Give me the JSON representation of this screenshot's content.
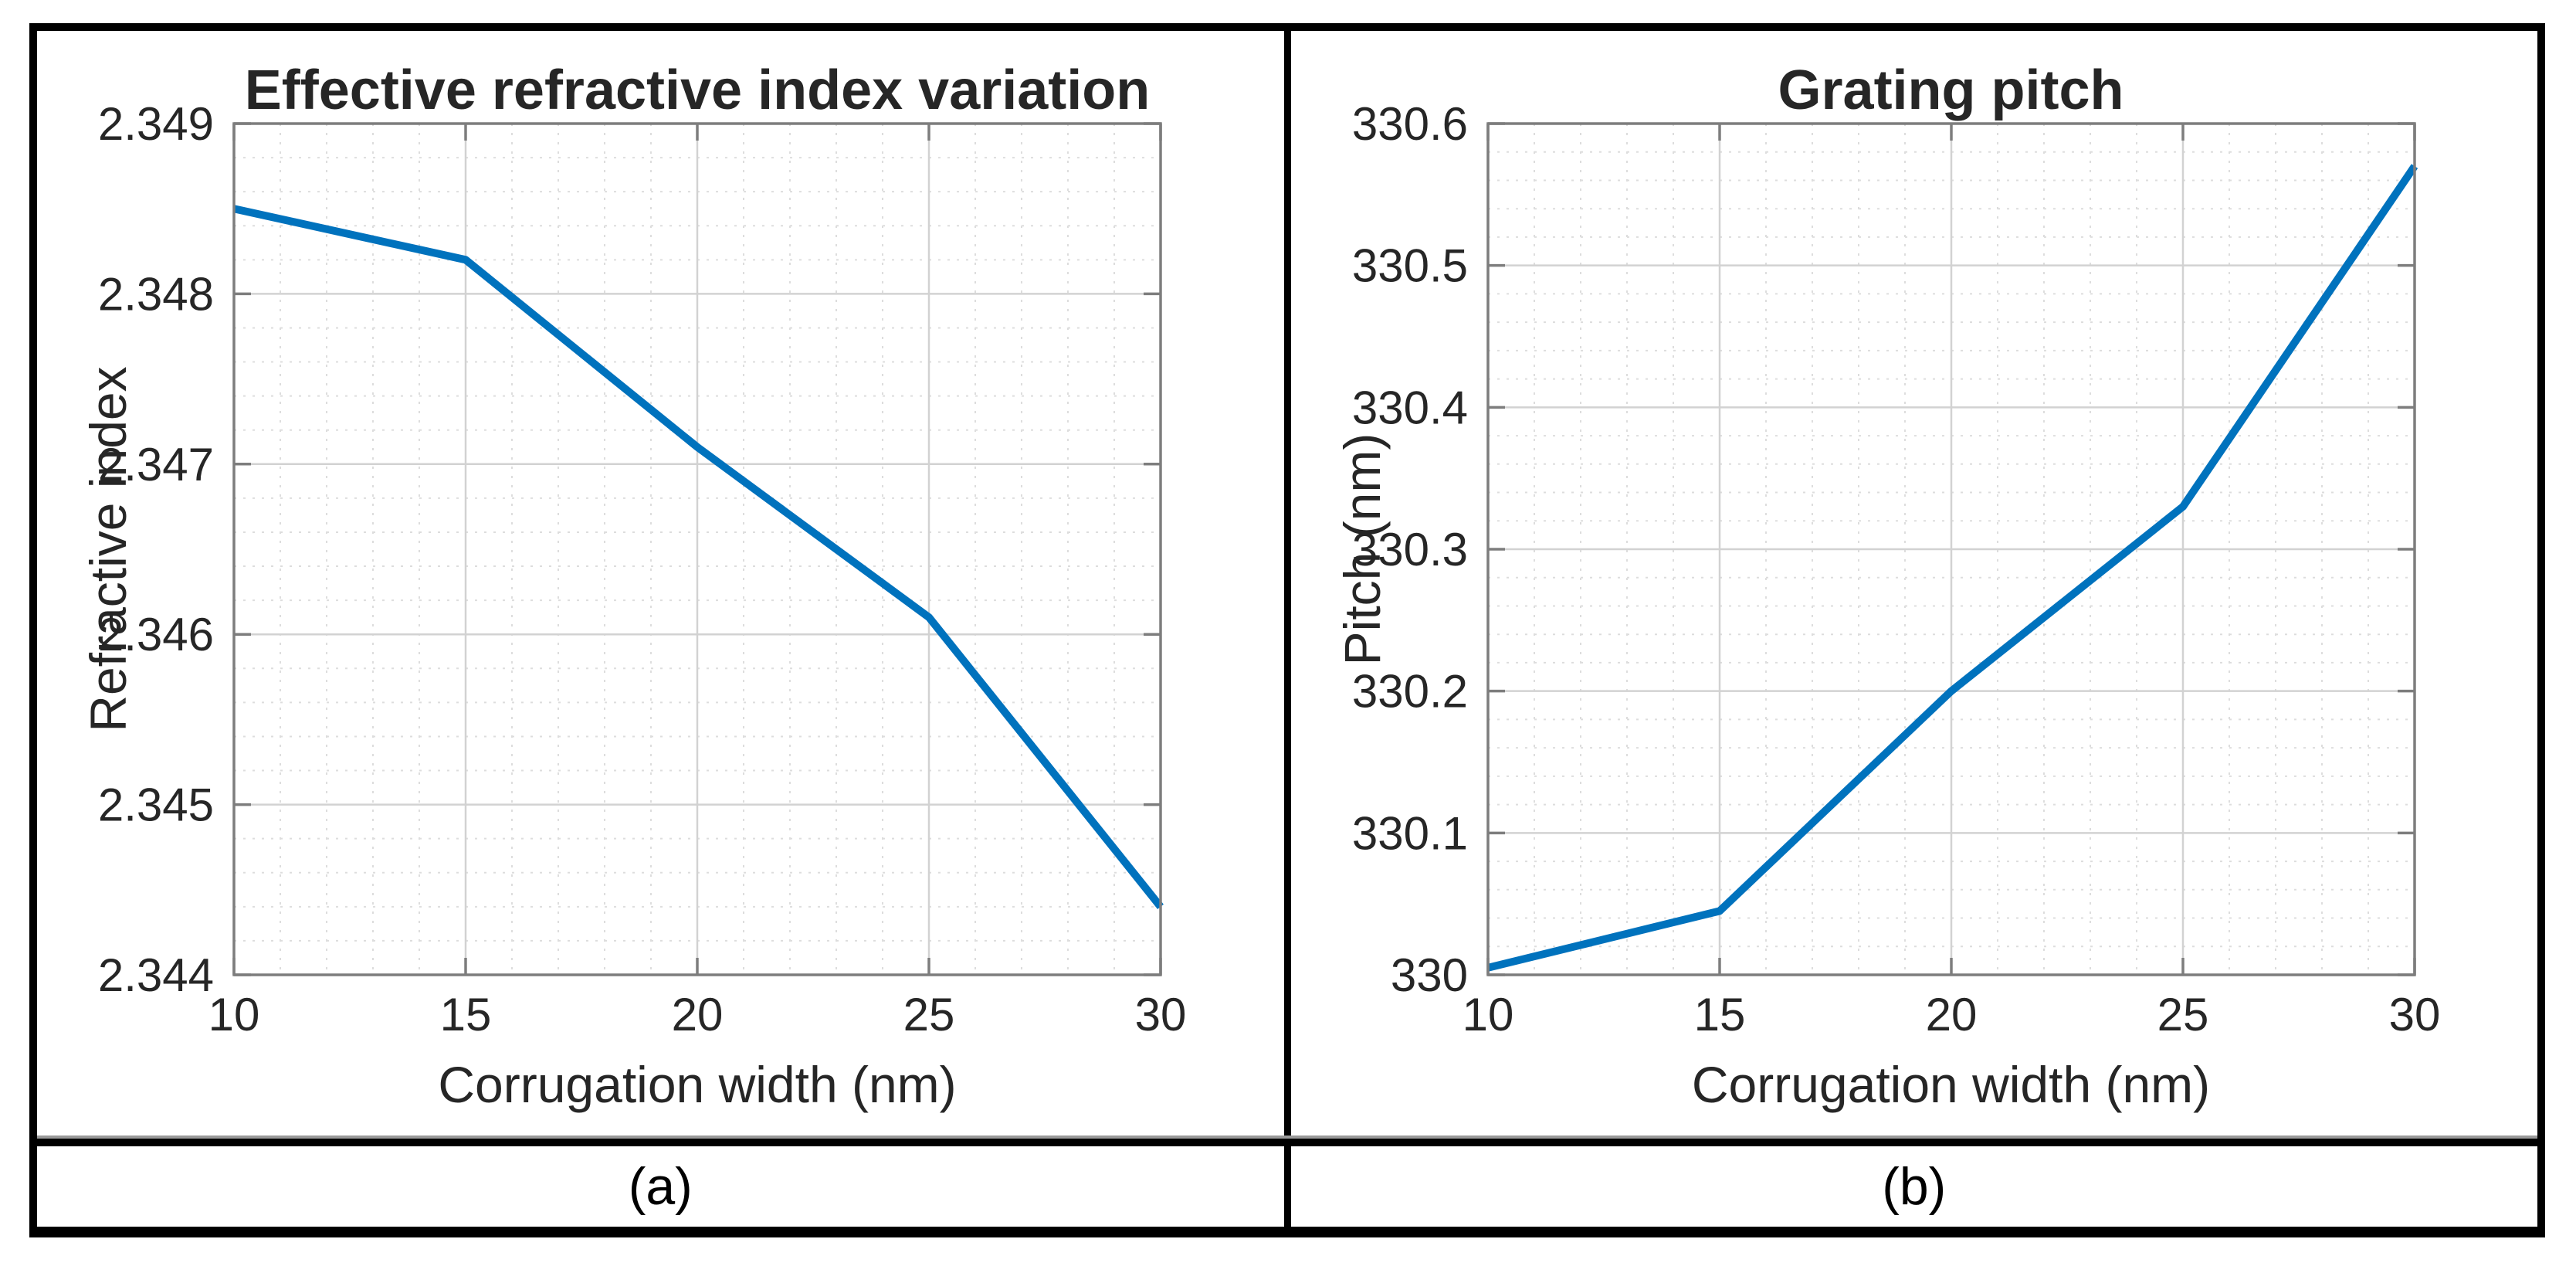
{
  "figure": {
    "background": "#ffffff",
    "border_color": "#000000",
    "axis_box_color": "#7d7d7d",
    "major_grid_color": "#d2d2d2",
    "minor_grid_color": "#dddddd",
    "text_color": "#262626",
    "accent_line_color": "#0072BD",
    "captions": {
      "left": "(a)",
      "right": "(b)"
    }
  },
  "chart_data": [
    {
      "type": "line",
      "title": "Effective refractive index variation",
      "xlabel": "Corrugation width (nm)",
      "ylabel": "Refractive index",
      "x": [
        10,
        15,
        20,
        25,
        30
      ],
      "y": [
        2.3485,
        2.3482,
        2.3471,
        2.3461,
        2.3444
      ],
      "xlim": [
        10,
        30
      ],
      "ylim": [
        2.344,
        2.349
      ],
      "xticks": [
        10,
        15,
        20,
        25,
        30
      ],
      "xtick_labels": [
        "10",
        "15",
        "20",
        "25",
        "30"
      ],
      "yticks": [
        2.344,
        2.345,
        2.346,
        2.347,
        2.348,
        2.349
      ],
      "ytick_labels": [
        "2.344",
        "2.345",
        "2.346",
        "2.347",
        "2.348",
        "2.349"
      ],
      "minor_x_step": 1,
      "minor_y_step": 0.0002,
      "grid": true,
      "minor_grid": true,
      "legend": "none",
      "line_color": "#0072BD",
      "caption": "(a)"
    },
    {
      "type": "line",
      "title": "Grating pitch",
      "xlabel": "Corrugation width (nm)",
      "ylabel": "Pitch (nm)",
      "x": [
        10,
        15,
        20,
        25,
        30
      ],
      "y": [
        330.005,
        330.045,
        330.2,
        330.33,
        330.57
      ],
      "xlim": [
        10,
        30
      ],
      "ylim": [
        330,
        330.6
      ],
      "xticks": [
        10,
        15,
        20,
        25,
        30
      ],
      "xtick_labels": [
        "10",
        "15",
        "20",
        "25",
        "30"
      ],
      "yticks": [
        330,
        330.1,
        330.2,
        330.3,
        330.4,
        330.5,
        330.6
      ],
      "ytick_labels": [
        "330",
        "330.1",
        "330.2",
        "330.3",
        "330.4",
        "330.5",
        "330.6"
      ],
      "minor_x_step": 1,
      "minor_y_step": 0.02,
      "grid": true,
      "minor_grid": true,
      "legend": "none",
      "line_color": "#0072BD",
      "caption": "(b)"
    }
  ]
}
